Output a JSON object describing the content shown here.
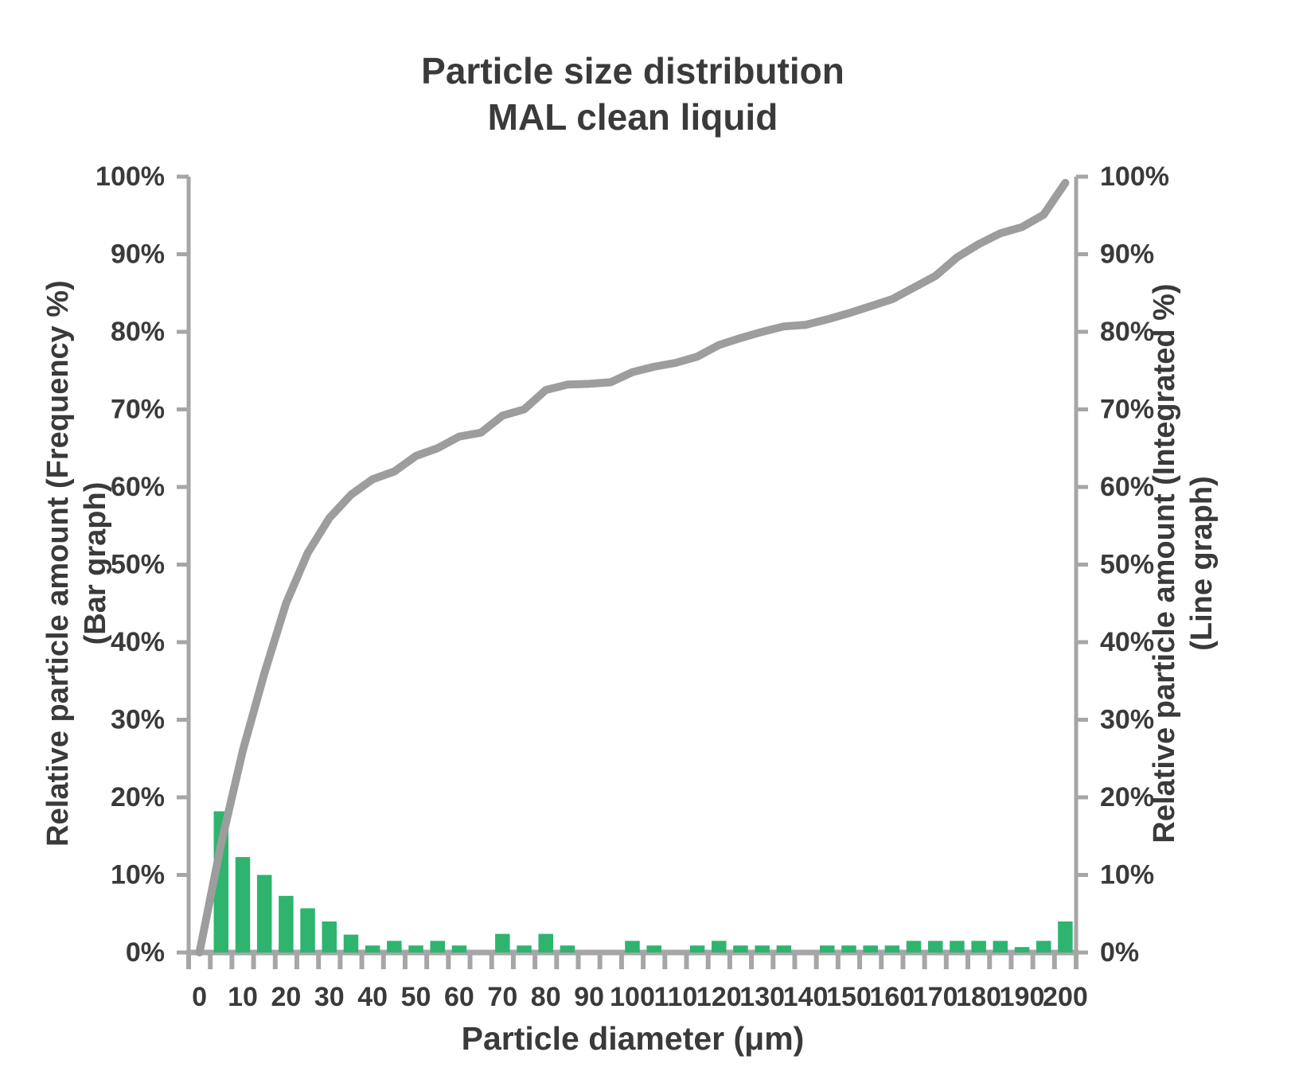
{
  "chart_data": {
    "type": "combo",
    "title_line1": "Particle size distribution",
    "title_line2": "MAL clean liquid",
    "xlabel": "Particle diameter (μm)",
    "ylabel_left_line1": "Relative particle amount (Frequency %)",
    "ylabel_left_line2": "(Bar graph)",
    "ylabel_right_line1": "Relative particle amount (Integrated %)",
    "ylabel_right_line2": "(Line graph)",
    "categories": [
      0,
      5,
      10,
      15,
      20,
      25,
      30,
      35,
      40,
      45,
      50,
      55,
      60,
      65,
      70,
      75,
      80,
      85,
      90,
      95,
      100,
      105,
      110,
      115,
      120,
      125,
      130,
      135,
      140,
      145,
      150,
      155,
      160,
      165,
      170,
      175,
      180,
      185,
      190,
      195,
      200
    ],
    "x_tick_labels": [
      "0",
      "10",
      "20",
      "30",
      "40",
      "50",
      "60",
      "70",
      "80",
      "90",
      "100",
      "110",
      "120",
      "130",
      "140",
      "150",
      "160",
      "170",
      "180",
      "190",
      "200"
    ],
    "y_ticks": [
      0,
      10,
      20,
      30,
      40,
      50,
      60,
      70,
      80,
      90,
      100
    ],
    "y_tick_suffix": "%",
    "ylim": [
      0,
      100
    ],
    "grid": false,
    "legend": false,
    "series": [
      {
        "name": "Relative particle amount (Frequency %)",
        "type": "bar",
        "color": "#2eb46e",
        "values": [
          0,
          18.2,
          12.3,
          10,
          7.3,
          5.7,
          4,
          2.3,
          0.9,
          1.5,
          0.9,
          1.5,
          0.9,
          0,
          2.4,
          0.9,
          2.4,
          0.9,
          0,
          0,
          1.5,
          0.9,
          0,
          0.9,
          1.5,
          0.9,
          0.9,
          0.9,
          0,
          0.9,
          0.9,
          0.9,
          0.9,
          1.5,
          1.5,
          1.5,
          1.5,
          1.5,
          0.7,
          1.5,
          4
        ]
      },
      {
        "name": "Relative particle amount (Integrated %)",
        "type": "line",
        "color": "#9d9d9d",
        "values": [
          0,
          14,
          26,
          36,
          45,
          51.5,
          56,
          59,
          61,
          62,
          64,
          65,
          66.5,
          67,
          69.2,
          70,
          72.5,
          73.2,
          73.3,
          73.5,
          74.8,
          75.5,
          76,
          76.8,
          78.3,
          79.2,
          80,
          80.7,
          80.9,
          81.6,
          82.4,
          83.3,
          84.2,
          85.7,
          87.2,
          89.6,
          91.3,
          92.7,
          93.5,
          95.1,
          99.2
        ]
      }
    ],
    "colors": {
      "axis": "#a6a6a6",
      "text": "#3a3a3a",
      "background": "#ffffff"
    }
  }
}
